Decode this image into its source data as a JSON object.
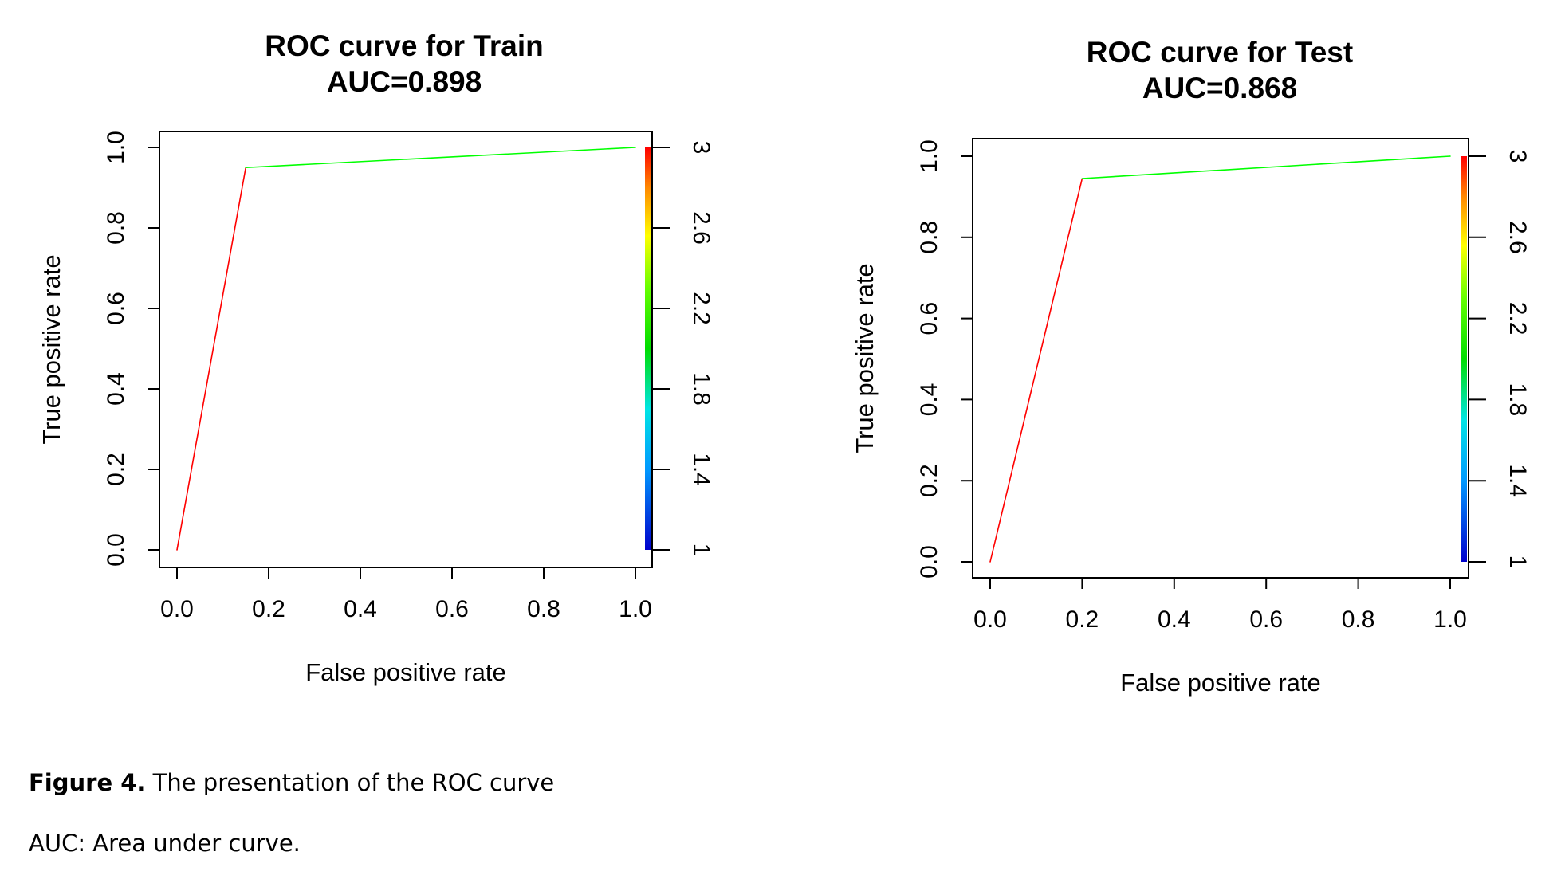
{
  "chart_data": [
    {
      "type": "line",
      "title": "ROC curve for Train",
      "subtitle": "AUC=0.898",
      "xlabel": "False positive rate",
      "ylabel": "True positive rate",
      "xlim": [
        0,
        1
      ],
      "ylim": [
        0,
        1
      ],
      "x_ticks": [
        "0.0",
        "0.2",
        "0.4",
        "0.6",
        "0.8",
        "1.0"
      ],
      "y_ticks": [
        "0.0",
        "0.2",
        "0.4",
        "0.6",
        "0.8",
        "1.0"
      ],
      "colorbar": {
        "range": [
          1,
          3
        ],
        "ticks": [
          "1",
          "1.4",
          "1.8",
          "2.2",
          "2.6",
          "3"
        ]
      },
      "series": [
        {
          "x": [
            0.0,
            0.15,
            1.0
          ],
          "y": [
            0.0,
            0.95,
            1.0
          ],
          "colors": [
            "#ff0000",
            "#00ff00"
          ]
        }
      ]
    },
    {
      "type": "line",
      "title": "ROC curve for Test",
      "subtitle": "AUC=0.868",
      "xlabel": "False positive rate",
      "ylabel": "True positive rate",
      "xlim": [
        0,
        1
      ],
      "ylim": [
        0,
        1
      ],
      "x_ticks": [
        "0.0",
        "0.2",
        "0.4",
        "0.6",
        "0.8",
        "1.0"
      ],
      "y_ticks": [
        "0.0",
        "0.2",
        "0.4",
        "0.6",
        "0.8",
        "1.0"
      ],
      "colorbar": {
        "range": [
          1,
          3
        ],
        "ticks": [
          "1",
          "1.4",
          "1.8",
          "2.2",
          "2.6",
          "3"
        ]
      },
      "series": [
        {
          "x": [
            0.0,
            0.2,
            1.0
          ],
          "y": [
            0.0,
            0.945,
            1.0
          ],
          "colors": [
            "#ff0000",
            "#00ff00"
          ]
        }
      ]
    }
  ],
  "caption": {
    "figure_label": "Figure 4.",
    "figure_text": " The presentation of the ROC curve",
    "abbreviation": "AUC: Area under curve."
  }
}
